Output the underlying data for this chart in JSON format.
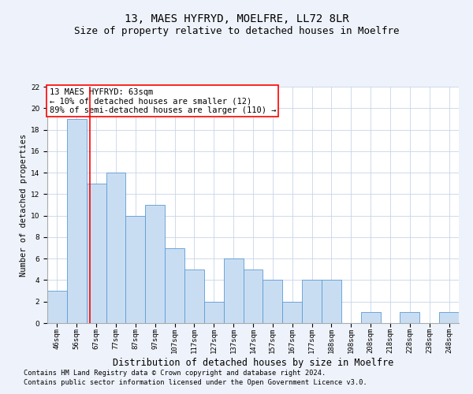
{
  "title1": "13, MAES HYFRYD, MOELFRE, LL72 8LR",
  "title2": "Size of property relative to detached houses in Moelfre",
  "xlabel": "Distribution of detached houses by size in Moelfre",
  "ylabel": "Number of detached properties",
  "categories": [
    "46sqm",
    "56sqm",
    "67sqm",
    "77sqm",
    "87sqm",
    "97sqm",
    "107sqm",
    "117sqm",
    "127sqm",
    "137sqm",
    "147sqm",
    "157sqm",
    "167sqm",
    "177sqm",
    "188sqm",
    "198sqm",
    "208sqm",
    "218sqm",
    "228sqm",
    "238sqm",
    "248sqm"
  ],
  "values": [
    3,
    19,
    13,
    14,
    10,
    11,
    7,
    5,
    2,
    6,
    5,
    4,
    2,
    4,
    4,
    0,
    1,
    0,
    1,
    0,
    1
  ],
  "bar_color": "#c9ddf2",
  "bar_edge_color": "#5b9bd5",
  "bar_edge_width": 0.6,
  "annotation_text_line1": "13 MAES HYFRYD: 63sqm",
  "annotation_text_line2": "← 10% of detached houses are smaller (12)",
  "annotation_text_line3": "89% of semi-detached houses are larger (110) →",
  "annotation_box_color": "white",
  "annotation_box_edge": "red",
  "vline_color": "red",
  "vline_x_index": 1.68,
  "ylim": [
    0,
    22
  ],
  "yticks": [
    0,
    2,
    4,
    6,
    8,
    10,
    12,
    14,
    16,
    18,
    20,
    22
  ],
  "grid_color": "#c8d4e8",
  "footnote1": "Contains HM Land Registry data © Crown copyright and database right 2024.",
  "footnote2": "Contains public sector information licensed under the Open Government Licence v3.0.",
  "background_color": "#eef2fa",
  "plot_bg_color": "white",
  "title1_fontsize": 10,
  "title2_fontsize": 9,
  "xlabel_fontsize": 8.5,
  "ylabel_fontsize": 7.5,
  "tick_fontsize": 6.5,
  "annotation_fontsize": 7.5,
  "footnote_fontsize": 6.2
}
